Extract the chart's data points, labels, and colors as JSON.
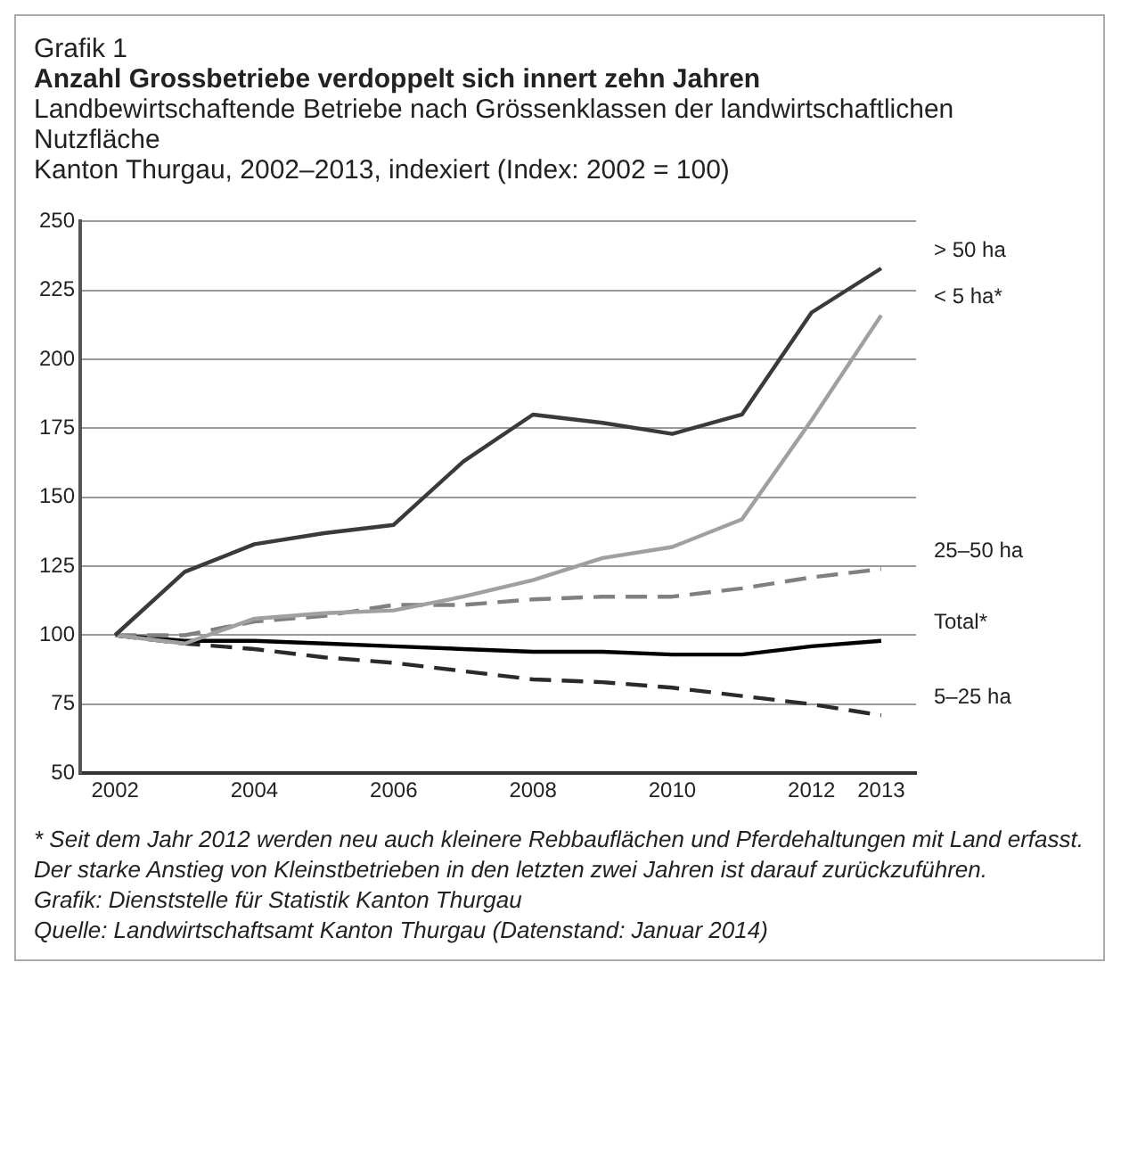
{
  "chart_data": {
    "type": "line",
    "title": "Anzahl Grossbetriebe verdoppelt sich innert zehn Jahren",
    "subtitle": "Landbewirtschaftende Betriebe nach Grössenklassen der landwirtschaftlichen Nutzfläche\nKanton Thurgau, 2002–2013, indexiert (Index: 2002 = 100)",
    "annotations": [
      "Grafik 1",
      "* Seit dem Jahr 2012 werden neu auch kleinere Rebbauflächen und Pferdehaltungen mit Land erfasst. Der starke Anstieg von Kleinstbetrieben in den letzten zwei Jahren ist darauf zurückzuführen.",
      "Grafik: Dienststelle für Statistik Kanton Thurgau",
      "Quelle: Landwirtschaftsamt Kanton Thurgau (Datenstand: Januar 2014)"
    ],
    "x": [
      2002,
      2003,
      2004,
      2005,
      2006,
      2007,
      2008,
      2009,
      2010,
      2011,
      2012,
      2013
    ],
    "xlim": [
      2001.5,
      2013.5
    ],
    "xticks": [
      2002,
      2004,
      2006,
      2008,
      2010,
      2012,
      2013
    ],
    "ylim": [
      50,
      250
    ],
    "yticks": [
      50,
      75,
      100,
      125,
      150,
      175,
      200,
      225,
      250
    ],
    "grid": "y",
    "legend": false,
    "marker": "none",
    "series": [
      {
        "name": "> 50 ha",
        "color": "#3a3a3a",
        "line_style": "solid",
        "values": [
          100,
          123,
          133,
          137,
          140,
          163,
          180,
          177,
          173,
          180,
          217,
          233
        ]
      },
      {
        "name": "< 5 ha*",
        "color": "#a0a0a0",
        "line_style": "solid",
        "values": [
          100,
          97,
          106,
          108,
          109,
          114,
          120,
          128,
          132,
          142,
          178,
          216
        ]
      },
      {
        "name": "25–50 ha",
        "color": "#808080",
        "line_style": "dashed",
        "values": [
          100,
          100,
          105,
          107,
          111,
          111,
          113,
          114,
          114,
          117,
          121,
          124
        ]
      },
      {
        "name": "Total*",
        "color": "#000000",
        "line_style": "solid",
        "values": [
          100,
          98,
          98,
          97,
          96,
          95,
          94,
          94,
          93,
          93,
          96,
          98
        ]
      },
      {
        "name": "5–25 ha",
        "color": "#2a2a2a",
        "line_style": "dashed",
        "values": [
          100,
          97,
          95,
          92,
          90,
          87,
          84,
          83,
          81,
          78,
          75,
          71
        ]
      }
    ]
  }
}
